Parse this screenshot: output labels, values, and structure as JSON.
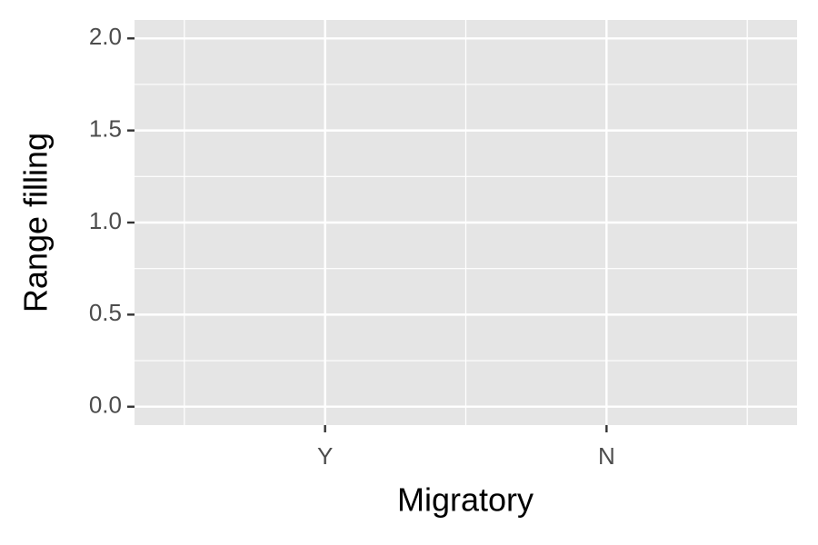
{
  "chart_data": {
    "type": "bar",
    "x_label": "Migratory",
    "y_label": "Range filling",
    "categories": [
      "Y",
      "N"
    ],
    "ylim": [
      -0.1,
      2.1
    ],
    "yticks": [
      {
        "value": 0,
        "label": "0.0"
      },
      0.5,
      {
        "value": 1,
        "label": "1.0"
      },
      1.5,
      {
        "value": 2,
        "label": "2.0"
      }
    ],
    "grid": true
  }
}
